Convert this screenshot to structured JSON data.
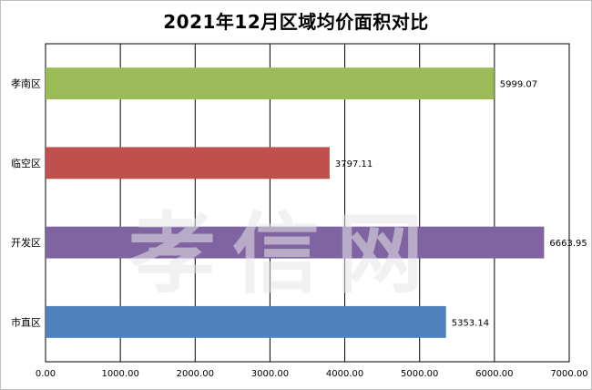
{
  "chart_data": {
    "type": "bar",
    "orientation": "horizontal",
    "title": "2021年12月区域均价面积对比",
    "categories": [
      "孝南区",
      "临空区",
      "开发区",
      "市直区"
    ],
    "values": [
      5999.07,
      3797.11,
      6663.95,
      5353.14
    ],
    "data_labels": [
      "5999.07",
      "3797.11",
      "6663.95",
      "5353.14"
    ],
    "colors": [
      "#9bbb59",
      "#c0504d",
      "#8064a2",
      "#4f81bd"
    ],
    "xlim": [
      0,
      7000
    ],
    "xticks": [
      "0.00",
      "1000.00",
      "2000.00",
      "3000.00",
      "4000.00",
      "5000.00",
      "6000.00",
      "7000.00"
    ],
    "grid": "vertical",
    "legend": "none",
    "xlabel": "",
    "ylabel": ""
  },
  "watermark": "孝信网"
}
